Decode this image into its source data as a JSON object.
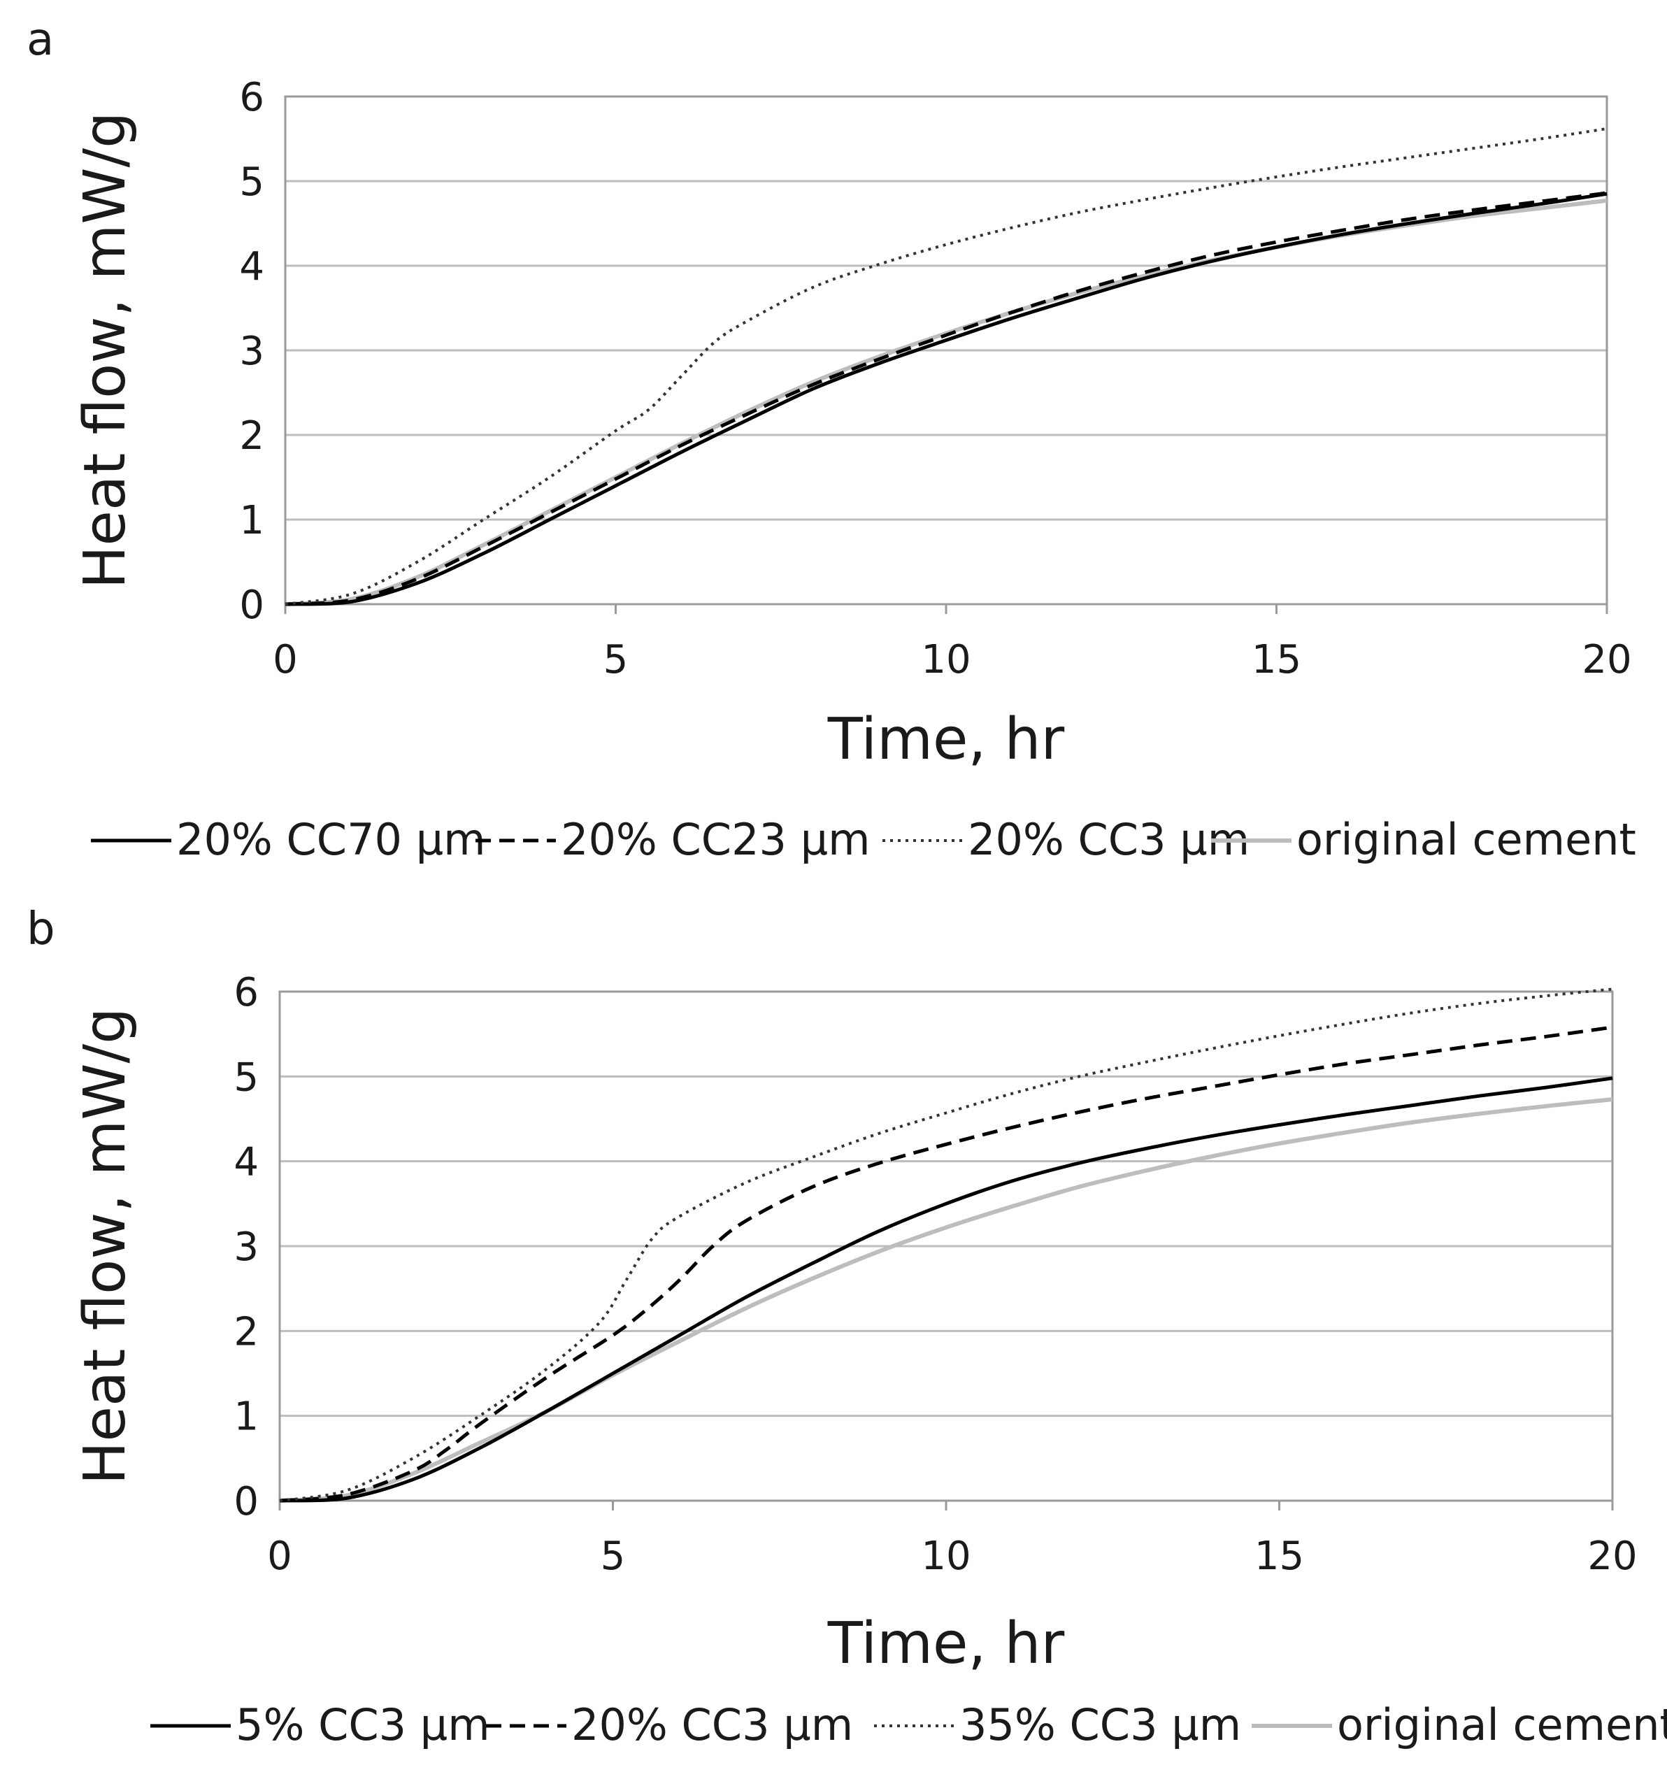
{
  "colors": {
    "black": "#000000",
    "gray_light": "#bdbdbd",
    "dotted": "#333333"
  },
  "chart_data": [
    {
      "panel": "a",
      "type": "line",
      "xlabel": "Time, hr",
      "ylabel": "Heat flow, mW/g",
      "xlim": [
        0,
        20
      ],
      "ylim": [
        0,
        6
      ],
      "xticks": [
        "0",
        "5",
        "10",
        "15",
        "20"
      ],
      "yticks": [
        "0",
        "1",
        "2",
        "3",
        "4",
        "5",
        "6"
      ],
      "grid": "horizontal",
      "legend_position": "bottom",
      "series": [
        {
          "name": "20% CC70 µm",
          "style": "solid-black",
          "x": [
            0,
            1,
            2,
            3,
            4,
            5,
            6,
            7,
            8,
            9,
            10,
            11,
            12,
            13,
            14,
            15,
            16,
            17,
            18,
            19,
            20
          ],
          "y": [
            0,
            0.03,
            0.25,
            0.6,
            1.0,
            1.4,
            1.8,
            2.18,
            2.55,
            2.85,
            3.12,
            3.38,
            3.62,
            3.85,
            4.05,
            4.22,
            4.37,
            4.5,
            4.62,
            4.73,
            4.85
          ]
        },
        {
          "name": "20% CC23 µm",
          "style": "dashed-black",
          "x": [
            0,
            1,
            2,
            3,
            4,
            5,
            6,
            7,
            8,
            9,
            10,
            11,
            12,
            13,
            14,
            15,
            16,
            17,
            18,
            19,
            20
          ],
          "y": [
            0,
            0.05,
            0.3,
            0.68,
            1.08,
            1.48,
            1.88,
            2.25,
            2.6,
            2.9,
            3.18,
            3.45,
            3.7,
            3.92,
            4.12,
            4.28,
            4.42,
            4.55,
            4.66,
            4.76,
            4.86
          ]
        },
        {
          "name": "20% CC3 µm",
          "style": "dotted",
          "x": [
            0,
            1,
            2,
            3,
            4,
            5,
            5.5,
            6,
            6.5,
            7,
            8,
            9,
            10,
            11,
            12,
            13,
            14,
            15,
            16,
            17,
            18,
            19,
            20
          ],
          "y": [
            0,
            0.12,
            0.5,
            1.0,
            1.5,
            2.05,
            2.3,
            2.7,
            3.1,
            3.35,
            3.75,
            4.02,
            4.25,
            4.45,
            4.63,
            4.78,
            4.92,
            5.05,
            5.17,
            5.28,
            5.39,
            5.5,
            5.62
          ]
        },
        {
          "name": "original cement",
          "style": "solid-gray",
          "x": [
            0,
            1,
            2,
            3,
            4,
            5,
            6,
            7,
            8,
            9,
            10,
            11,
            12,
            13,
            14,
            15,
            16,
            17,
            18,
            19,
            20
          ],
          "y": [
            0,
            0.06,
            0.32,
            0.7,
            1.1,
            1.5,
            1.9,
            2.28,
            2.63,
            2.93,
            3.2,
            3.45,
            3.68,
            3.88,
            4.06,
            4.22,
            4.36,
            4.48,
            4.59,
            4.68,
            4.77
          ]
        }
      ]
    },
    {
      "panel": "b",
      "type": "line",
      "xlabel": "Time, hr",
      "ylabel": "Heat flow, mW/g",
      "xlim": [
        0,
        20
      ],
      "ylim": [
        0,
        6
      ],
      "xticks": [
        "0",
        "5",
        "10",
        "15",
        "20"
      ],
      "yticks": [
        "0",
        "1",
        "2",
        "3",
        "4",
        "5",
        "6"
      ],
      "grid": "horizontal",
      "legend_position": "bottom",
      "series": [
        {
          "name": "5% CC3 µm",
          "style": "solid-black",
          "x": [
            0,
            1,
            2,
            3,
            4,
            5,
            6,
            7,
            8,
            9,
            10,
            11,
            12,
            13,
            14,
            15,
            16,
            17,
            18,
            19,
            20
          ],
          "y": [
            0,
            0.03,
            0.25,
            0.62,
            1.05,
            1.5,
            1.95,
            2.4,
            2.8,
            3.18,
            3.5,
            3.77,
            3.98,
            4.15,
            4.3,
            4.43,
            4.55,
            4.66,
            4.77,
            4.87,
            4.98
          ]
        },
        {
          "name": "20% CC3 µm",
          "style": "dashed-black",
          "x": [
            0,
            1,
            2,
            2.5,
            3,
            4,
            5,
            5.5,
            6,
            6.5,
            7,
            8,
            9,
            10,
            11,
            12,
            13,
            14,
            15,
            16,
            17,
            18,
            19,
            20
          ],
          "y": [
            0,
            0.07,
            0.35,
            0.6,
            0.9,
            1.45,
            1.95,
            2.25,
            2.6,
            3.0,
            3.3,
            3.7,
            3.98,
            4.2,
            4.4,
            4.58,
            4.74,
            4.88,
            5.02,
            5.15,
            5.26,
            5.37,
            5.47,
            5.58
          ]
        },
        {
          "name": "35% CC3 µm",
          "style": "dotted",
          "x": [
            0,
            1,
            2,
            3,
            4,
            4.8,
            5.2,
            5.6,
            6,
            7,
            8,
            9,
            10,
            11,
            12,
            13,
            14,
            15,
            16,
            17,
            18,
            19,
            20
          ],
          "y": [
            0,
            0.12,
            0.5,
            1.0,
            1.55,
            2.1,
            2.6,
            3.1,
            3.35,
            3.75,
            4.05,
            4.33,
            4.57,
            4.8,
            5.0,
            5.17,
            5.33,
            5.48,
            5.62,
            5.75,
            5.86,
            5.95,
            6.03
          ]
        },
        {
          "name": "original cement",
          "style": "solid-gray",
          "x": [
            0,
            1,
            2,
            3,
            4,
            5,
            6,
            7,
            8,
            9,
            10,
            11,
            12,
            13,
            14,
            15,
            16,
            17,
            18,
            19,
            20
          ],
          "y": [
            0,
            0.06,
            0.32,
            0.68,
            1.05,
            1.48,
            1.88,
            2.27,
            2.62,
            2.94,
            3.22,
            3.47,
            3.7,
            3.89,
            4.06,
            4.21,
            4.34,
            4.46,
            4.56,
            4.65,
            4.73
          ]
        }
      ]
    }
  ]
}
